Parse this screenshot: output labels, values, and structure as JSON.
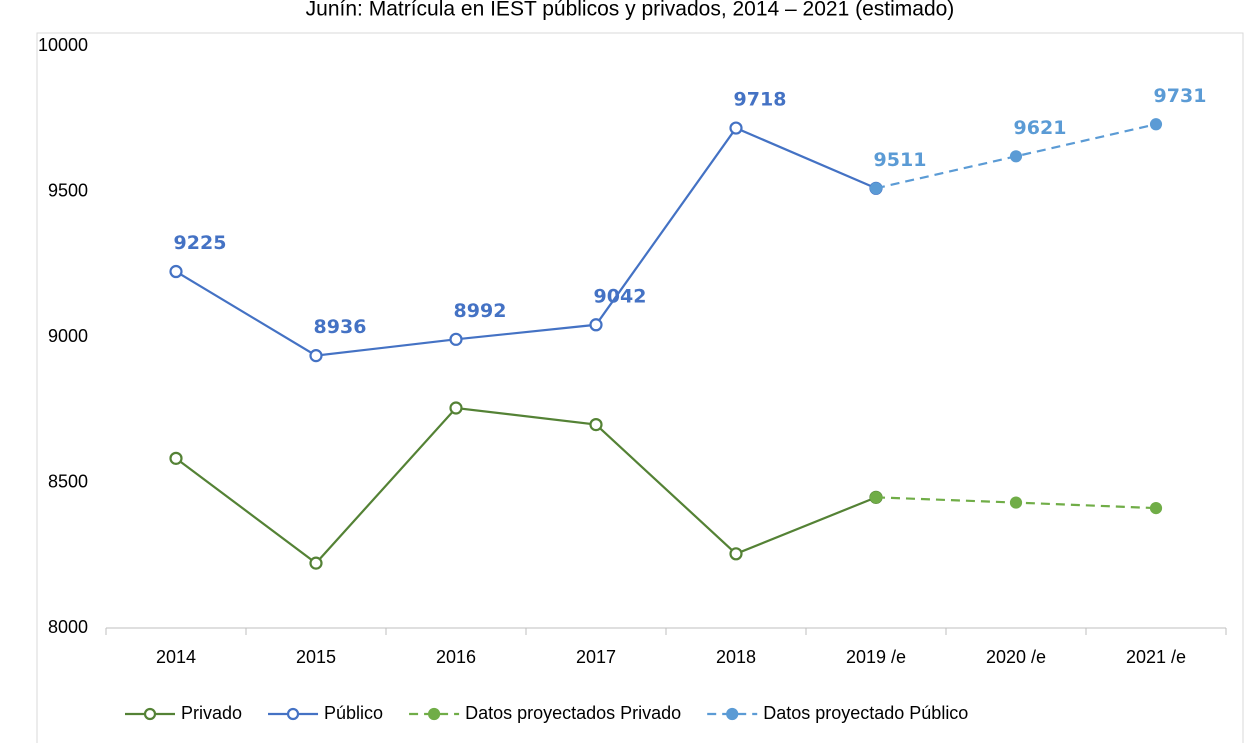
{
  "chart_data": {
    "type": "line",
    "title": "Junín: Matrícula en IEST públicos y privados, 2014 – 2021 (estimado)",
    "categories": [
      "2014",
      "2015",
      "2016",
      "2017",
      "2018",
      "2019 /e",
      "2020 /e",
      "2021 /e"
    ],
    "series": [
      {
        "name": "Privado",
        "color": "#548235",
        "dashed": false,
        "marker": "open",
        "values": [
          8583,
          8223,
          8756,
          8699,
          8255,
          8449,
          null,
          null
        ]
      },
      {
        "name": "Público",
        "color": "#4472c4",
        "dashed": false,
        "marker": "open",
        "values": [
          9225,
          8936,
          8992,
          9042,
          9718,
          9511,
          null,
          null
        ]
      },
      {
        "name": "Datos proyectados Privado",
        "color": "#70ad47",
        "dashed": true,
        "marker": "filled",
        "values": [
          null,
          null,
          null,
          null,
          null,
          8449,
          8431,
          8412
        ]
      },
      {
        "name": "Datos proyectado Público",
        "color": "#5b9bd5",
        "dashed": true,
        "marker": "filled",
        "values": [
          null,
          null,
          null,
          null,
          null,
          9511,
          9621,
          9731
        ]
      }
    ],
    "ylim": [
      8000,
      10000
    ],
    "yticks": [
      8000,
      8500,
      9000,
      9500,
      10000
    ],
    "grid": false,
    "legend": "bottom"
  }
}
